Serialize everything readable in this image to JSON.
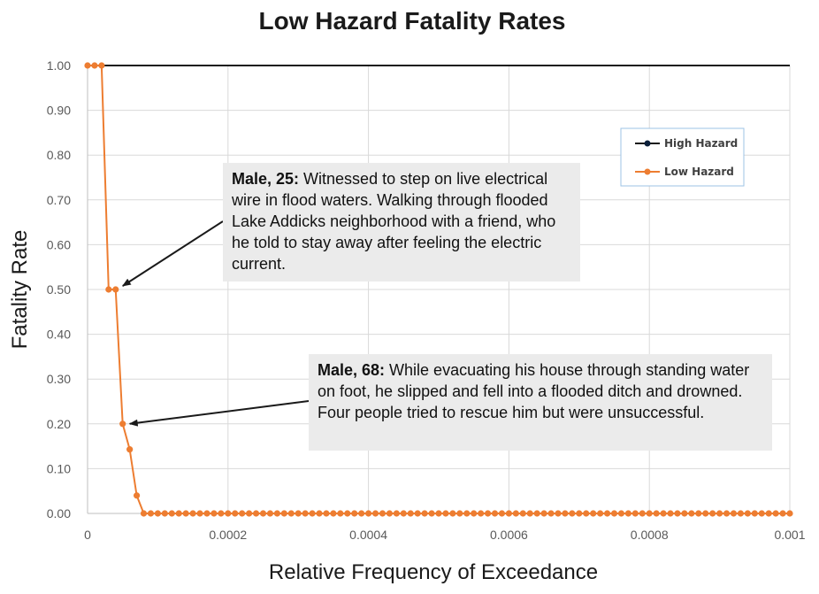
{
  "chart_data": {
    "type": "line",
    "title": "Low Hazard Fatality Rates",
    "xlabel": "Relative Frequency of Exceedance",
    "ylabel": "Fatality Rate",
    "xlim": [
      0,
      0.001
    ],
    "ylim": [
      0,
      1.0
    ],
    "x_ticks": [
      "0",
      "0.0002",
      "0.0004",
      "0.0006",
      "0.0008",
      "0.001"
    ],
    "y_ticks": [
      "0.00",
      "0.10",
      "0.20",
      "0.30",
      "0.40",
      "0.50",
      "0.60",
      "0.70",
      "0.80",
      "0.90",
      "1.00"
    ],
    "grid": true,
    "legend_position": "top-right",
    "series": [
      {
        "name": "High Hazard",
        "color": "#1a1a1a",
        "marker_color": "#0b1f3a",
        "x": [
          0,
          0.001
        ],
        "values": [
          1.0,
          1.0
        ]
      },
      {
        "name": "Low Hazard",
        "color": "#ed7d31",
        "x": [
          0,
          1e-05,
          2e-05,
          3e-05,
          4e-05,
          5e-05,
          6e-05,
          7e-05,
          8e-05
        ],
        "values": [
          1.0,
          1.0,
          1.0,
          0.5,
          0.5,
          0.2,
          0.143,
          0.04,
          0.0
        ],
        "zero_tail_from": 9e-05,
        "zero_tail_to": 0.001,
        "zero_tail_step": 1e-05
      }
    ],
    "annotations": [
      {
        "bold": "Male, 25:",
        "text": " Witnessed to step on live electrical wire in flood waters. Walking through flooded Lake Addicks neighborhood with a friend, who he told to stay away after feeling the electric current.",
        "target_x": 4e-05,
        "target_y": 0.5
      },
      {
        "bold": "Male, 68:",
        "text": " While evacuating his house through standing water on foot, he slipped and fell into a flooded ditch and drowned. Four people tried to rescue him but were unsuccessful.",
        "target_x": 5e-05,
        "target_y": 0.2
      }
    ]
  }
}
